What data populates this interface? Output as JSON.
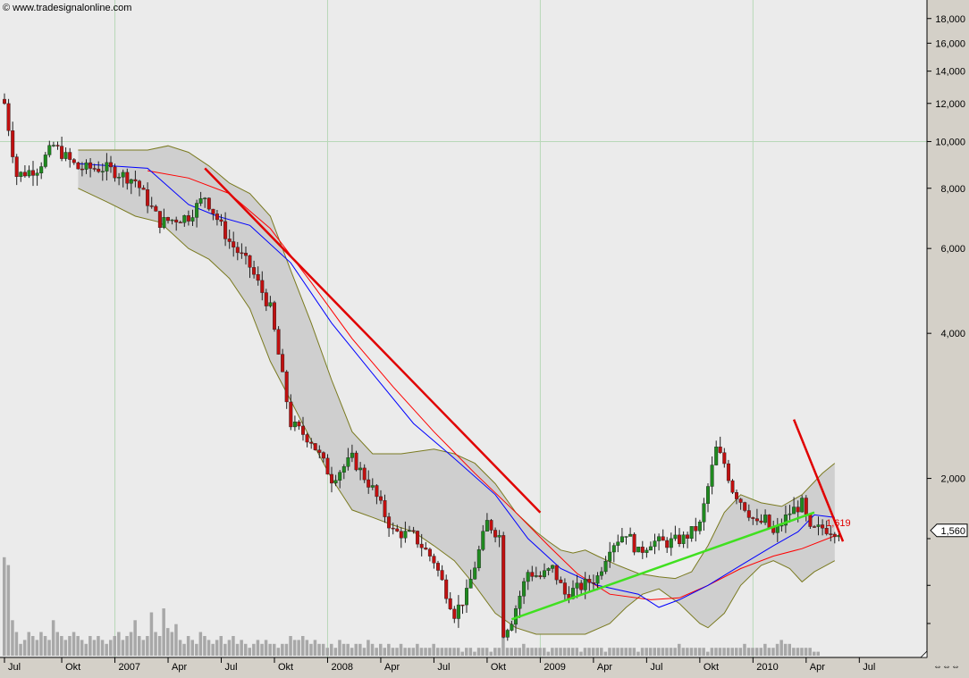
{
  "source_label": "© www.tradesignalonline.com",
  "chart_data": {
    "type": "candlestick",
    "scale": "log",
    "x_tick_labels": [
      "Jul",
      "Okt",
      "2007",
      "Apr",
      "Jul",
      "Okt",
      "2008",
      "Apr",
      "Jul",
      "Okt",
      "2009",
      "Apr",
      "Jul",
      "Okt",
      "2010",
      "Apr",
      "Jul"
    ],
    "y_tick_labels": [
      "18,000",
      "16,000",
      "14,000",
      "12,000",
      "10,000",
      "8,000",
      "6,000",
      "4,000",
      "2,000"
    ],
    "y_ticks": [
      18,
      16,
      14,
      12,
      10,
      8,
      6,
      4,
      2
    ],
    "y_minor_ticks": [
      1.5,
      1.2,
      1.0
    ],
    "ylim": [
      0.95,
      19.5
    ],
    "x_index_range": [
      0,
      205
    ],
    "x_tick_index": [
      0,
      14,
      27,
      40,
      53,
      66,
      79,
      92,
      105,
      118,
      131,
      144,
      157,
      170,
      183,
      196,
      209
    ],
    "current_price": 1.56,
    "current_price_label": "1,560",
    "annotation": {
      "label": "1,619",
      "value": 1.619,
      "index": 200
    },
    "moving_average_fast": {
      "color": "#0000ff",
      "points": [
        [
          18,
          9.0
        ],
        [
          35,
          8.8
        ],
        [
          45,
          7.4
        ],
        [
          52,
          7.0
        ],
        [
          60,
          6.7
        ],
        [
          70,
          5.6
        ],
        [
          80,
          4.2
        ],
        [
          90,
          3.3
        ],
        [
          100,
          2.6
        ],
        [
          110,
          2.2
        ],
        [
          120,
          1.85
        ],
        [
          128,
          1.5
        ],
        [
          136,
          1.3
        ],
        [
          145,
          1.2
        ],
        [
          155,
          1.15
        ],
        [
          160,
          1.08
        ],
        [
          165,
          1.12
        ],
        [
          172,
          1.2
        ],
        [
          180,
          1.32
        ],
        [
          188,
          1.45
        ],
        [
          194,
          1.55
        ],
        [
          198,
          1.68
        ],
        [
          203,
          1.66
        ]
      ]
    },
    "moving_average_slow": {
      "color": "#ff0000",
      "points": [
        [
          35,
          8.7
        ],
        [
          45,
          8.4
        ],
        [
          55,
          7.8
        ],
        [
          65,
          6.6
        ],
        [
          75,
          5.1
        ],
        [
          85,
          3.9
        ],
        [
          95,
          3.1
        ],
        [
          105,
          2.5
        ],
        [
          115,
          2.05
        ],
        [
          125,
          1.7
        ],
        [
          133,
          1.45
        ],
        [
          140,
          1.27
        ],
        [
          148,
          1.15
        ],
        [
          158,
          1.12
        ],
        [
          165,
          1.13
        ],
        [
          172,
          1.2
        ],
        [
          180,
          1.3
        ],
        [
          188,
          1.38
        ],
        [
          195,
          1.43
        ],
        [
          203,
          1.52
        ]
      ]
    },
    "bollinger_upper": [
      [
        18,
        9.6
      ],
      [
        35,
        9.6
      ],
      [
        40,
        9.8
      ],
      [
        45,
        9.5
      ],
      [
        50,
        8.9
      ],
      [
        55,
        8.2
      ],
      [
        60,
        7.8
      ],
      [
        65,
        7.0
      ],
      [
        70,
        5.4
      ],
      [
        75,
        4.2
      ],
      [
        80,
        3.2
      ],
      [
        85,
        2.5
      ],
      [
        90,
        2.25
      ],
      [
        97,
        2.25
      ],
      [
        105,
        2.3
      ],
      [
        110,
        2.25
      ],
      [
        115,
        2.15
      ],
      [
        120,
        1.95
      ],
      [
        125,
        1.7
      ],
      [
        130,
        1.55
      ],
      [
        133,
        1.48
      ],
      [
        136,
        1.42
      ],
      [
        139,
        1.4
      ],
      [
        142,
        1.42
      ],
      [
        145,
        1.38
      ],
      [
        150,
        1.32
      ],
      [
        155,
        1.27
      ],
      [
        160,
        1.25
      ],
      [
        164,
        1.24
      ],
      [
        168,
        1.28
      ],
      [
        172,
        1.45
      ],
      [
        176,
        1.7
      ],
      [
        180,
        1.85
      ],
      [
        185,
        1.78
      ],
      [
        190,
        1.75
      ],
      [
        195,
        1.85
      ],
      [
        200,
        2.05
      ],
      [
        203,
        2.15
      ]
    ],
    "bollinger_lower": [
      [
        18,
        8.0
      ],
      [
        25,
        7.5
      ],
      [
        32,
        7.0
      ],
      [
        38,
        6.8
      ],
      [
        45,
        6.0
      ],
      [
        50,
        5.7
      ],
      [
        55,
        5.2
      ],
      [
        60,
        4.5
      ],
      [
        65,
        3.5
      ],
      [
        70,
        2.9
      ],
      [
        75,
        2.4
      ],
      [
        80,
        2.0
      ],
      [
        85,
        1.72
      ],
      [
        90,
        1.66
      ],
      [
        95,
        1.6
      ],
      [
        100,
        1.55
      ],
      [
        105,
        1.45
      ],
      [
        110,
        1.35
      ],
      [
        115,
        1.2
      ],
      [
        120,
        1.05
      ],
      [
        125,
        0.98
      ],
      [
        130,
        0.95
      ],
      [
        135,
        0.95
      ],
      [
        142,
        0.95
      ],
      [
        148,
        1.0
      ],
      [
        152,
        1.08
      ],
      [
        156,
        1.15
      ],
      [
        160,
        1.18
      ],
      [
        165,
        1.1
      ],
      [
        170,
        1.0
      ],
      [
        172,
        0.98
      ],
      [
        176,
        1.05
      ],
      [
        180,
        1.2
      ],
      [
        185,
        1.32
      ],
      [
        188,
        1.35
      ],
      [
        192,
        1.3
      ],
      [
        195,
        1.22
      ],
      [
        198,
        1.28
      ],
      [
        203,
        1.35
      ]
    ],
    "bollinger_fill_color": "#cfcfcf",
    "bollinger_line_color": "#7a7a20",
    "trendlines": [
      {
        "color": "#e00000",
        "from": [
          49,
          8.8
        ],
        "to": [
          131,
          1.7
        ]
      },
      {
        "color": "#e00000",
        "from": [
          193,
          2.65
        ],
        "to": [
          205,
          1.48
        ]
      },
      {
        "color": "#40e020",
        "from": [
          124,
          1.02
        ],
        "to": [
          198,
          1.7
        ]
      }
    ],
    "candle_up_color": "#1f8a1f",
    "candle_down_color": "#c01010",
    "close_anchors": [
      [
        0,
        12.0
      ],
      [
        3,
        8.5
      ],
      [
        8,
        8.8
      ],
      [
        12,
        9.8
      ],
      [
        18,
        8.8
      ],
      [
        25,
        8.8
      ],
      [
        32,
        8.3
      ],
      [
        38,
        6.8
      ],
      [
        45,
        7.0
      ],
      [
        49,
        7.7
      ],
      [
        55,
        6.2
      ],
      [
        60,
        5.5
      ],
      [
        65,
        4.5
      ],
      [
        70,
        2.6
      ],
      [
        75,
        2.4
      ],
      [
        80,
        2.0
      ],
      [
        85,
        2.2
      ],
      [
        90,
        1.9
      ],
      [
        95,
        1.55
      ],
      [
        100,
        1.52
      ],
      [
        105,
        1.35
      ],
      [
        110,
        1.05
      ],
      [
        113,
        1.15
      ],
      [
        118,
        1.62
      ],
      [
        121,
        1.52
      ],
      [
        122,
        0.96
      ],
      [
        124,
        1.02
      ],
      [
        128,
        1.28
      ],
      [
        131,
        1.25
      ],
      [
        134,
        1.3
      ],
      [
        137,
        1.15
      ],
      [
        140,
        1.18
      ],
      [
        145,
        1.25
      ],
      [
        148,
        1.45
      ],
      [
        152,
        1.55
      ],
      [
        155,
        1.4
      ],
      [
        158,
        1.48
      ],
      [
        162,
        1.47
      ],
      [
        166,
        1.5
      ],
      [
        170,
        1.6
      ],
      [
        174,
        2.3
      ],
      [
        176,
        2.15
      ],
      [
        178,
        1.9
      ],
      [
        180,
        1.8
      ],
      [
        182,
        1.7
      ],
      [
        184,
        1.6
      ],
      [
        186,
        1.64
      ],
      [
        188,
        1.53
      ],
      [
        192,
        1.7
      ],
      [
        195,
        1.77
      ],
      [
        197,
        1.55
      ],
      [
        200,
        1.58
      ],
      [
        203,
        1.56
      ]
    ],
    "volume_bars": [
      0.25,
      0.23,
      0.09,
      0.06,
      0.03,
      0.04,
      0.06,
      0.05,
      0.04,
      0.06,
      0.05,
      0.04,
      0.09,
      0.06,
      0.05,
      0.04,
      0.05,
      0.06,
      0.05,
      0.04,
      0.03,
      0.05,
      0.04,
      0.05,
      0.04,
      0.03,
      0.04,
      0.05,
      0.06,
      0.04,
      0.05,
      0.06,
      0.09,
      0.05,
      0.04,
      0.05,
      0.11,
      0.06,
      0.05,
      0.12,
      0.07,
      0.06,
      0.08,
      0.04,
      0.03,
      0.05,
      0.04,
      0.03,
      0.06,
      0.05,
      0.04,
      0.03,
      0.04,
      0.05,
      0.03,
      0.04,
      0.05,
      0.03,
      0.04,
      0.03,
      0.02,
      0.03,
      0.04,
      0.03,
      0.04,
      0.03,
      0.03,
      0.02,
      0.03,
      0.03,
      0.05,
      0.04,
      0.04,
      0.05,
      0.04,
      0.03,
      0.04,
      0.03,
      0.03,
      0.02,
      0.03,
      0.02,
      0.04,
      0.03,
      0.03,
      0.02,
      0.03,
      0.03,
      0.02,
      0.04,
      0.03,
      0.02,
      0.03,
      0.02,
      0.03,
      0.02,
      0.02,
      0.03,
      0.02,
      0.02,
      0.02,
      0.03,
      0.02,
      0.02,
      0.02,
      0.03,
      0.02,
      0.02,
      0.02,
      0.02,
      0.02,
      0.02,
      0.01,
      0.02,
      0.02,
      0.01,
      0.02,
      0.02,
      0.02,
      0.01,
      0.02,
      0.02,
      0.11,
      0.02,
      0.02,
      0.02,
      0.02,
      0.03,
      0.02,
      0.02,
      0.02,
      0.02,
      0.02,
      0.01,
      0.02,
      0.02,
      0.02,
      0.02,
      0.02,
      0.02,
      0.02,
      0.01,
      0.02,
      0.02,
      0.02,
      0.02,
      0.02,
      0.01,
      0.02,
      0.02,
      0.02,
      0.02,
      0.02,
      0.02,
      0.02,
      0.01,
      0.02,
      0.02,
      0.02,
      0.02,
      0.02,
      0.02,
      0.02,
      0.02,
      0.02,
      0.03,
      0.02,
      0.02,
      0.02,
      0.02,
      0.02,
      0.02,
      0.01,
      0.02,
      0.02,
      0.02,
      0.02,
      0.02,
      0.02,
      0.02,
      0.02,
      0.03,
      0.02,
      0.02,
      0.02,
      0.02,
      0.03,
      0.02,
      0.02,
      0.03,
      0.04,
      0.03,
      0.03,
      0.02,
      0.02,
      0.02,
      0.02,
      0.02,
      0.01,
      0.01
    ]
  }
}
